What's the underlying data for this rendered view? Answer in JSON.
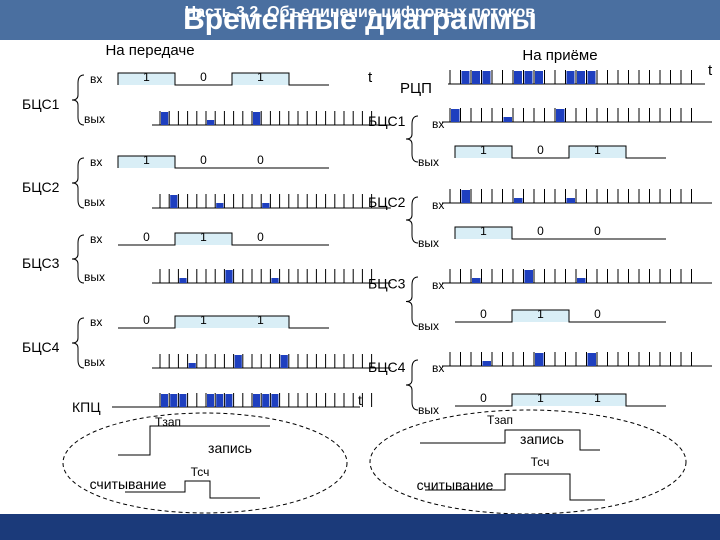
{
  "title": "Временные диаграммы",
  "footer": "Часть 3.2. Объединение цифровых потоков",
  "colors": {
    "header_bg": "#4a6fa0",
    "footer_bg": "#1b3a7a",
    "pulse_fill": "#1e3fbf",
    "frame_fill": "#d9eef6"
  },
  "tx": {
    "heading": "На передаче",
    "t_label": "t",
    "input_label": "вх",
    "output_label": "вых",
    "blocks": [
      {
        "name": "БЦС1",
        "bits": [
          "1",
          "0",
          "1"
        ]
      },
      {
        "name": "БЦС2",
        "bits": [
          "1",
          "0",
          "0"
        ]
      },
      {
        "name": "БЦС3",
        "bits": [
          "0",
          "1",
          "0"
        ]
      },
      {
        "name": "БЦС4",
        "bits": [
          "0",
          "1",
          "1"
        ]
      }
    ],
    "kpc": "КПЦ",
    "t_write": "Тзап",
    "write": "запись",
    "t_read": "Тсч",
    "read": "считывание"
  },
  "rx": {
    "heading": "На приёме",
    "t_label": "t",
    "rcp": "РЦП",
    "input_label": "вх",
    "output_label": "вых",
    "blocks": [
      {
        "name": "БЦС1",
        "bits": [
          "1",
          "0",
          "1"
        ]
      },
      {
        "name": "БЦС2",
        "bits": [
          "1",
          "0",
          "0"
        ]
      },
      {
        "name": "БЦС3",
        "bits": [
          "0",
          "1",
          "0"
        ]
      },
      {
        "name": "БЦС4",
        "bits": [
          "0",
          "1",
          "1"
        ]
      }
    ],
    "t_write": "Тзап",
    "write": "запись",
    "t_read": "Тсч",
    "read": "считывание"
  }
}
